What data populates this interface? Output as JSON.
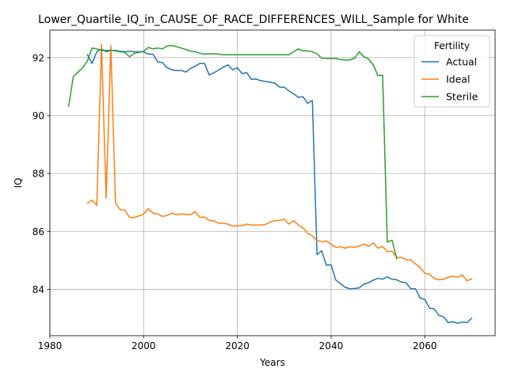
{
  "chart_data": {
    "type": "line",
    "title": "Lower_Quartile_IQ_in_CAUSE_OF_RACE_DIFFERENCES_WILL_Sample for White",
    "xlabel": "Years",
    "ylabel": "IQ",
    "xlim": [
      1980,
      2075
    ],
    "ylim": [
      82.4,
      92.95
    ],
    "xticks": [
      1980,
      2000,
      2020,
      2040,
      2060
    ],
    "yticks": [
      84,
      86,
      88,
      90,
      92
    ],
    "grid": true,
    "legend": {
      "title": "Fertility",
      "position": "top-right"
    },
    "series": [
      {
        "name": "Actual",
        "color": "#1f77b4",
        "points": [
          [
            1988,
            92.1
          ],
          [
            1989,
            91.8
          ],
          [
            1990,
            92.2
          ],
          [
            1991,
            92.3
          ],
          [
            1992,
            92.2
          ],
          [
            1993,
            92.25
          ],
          [
            1994,
            92.25
          ],
          [
            1995,
            92.22
          ],
          [
            1996,
            92.2
          ],
          [
            1997,
            92.22
          ],
          [
            1998,
            92.2
          ],
          [
            1999,
            92.2
          ],
          [
            2000,
            92.2
          ],
          [
            2001,
            92.12
          ],
          [
            2002,
            92.12
          ],
          [
            2003,
            91.85
          ],
          [
            2004,
            91.83
          ],
          [
            2005,
            91.65
          ],
          [
            2006,
            91.58
          ],
          [
            2007,
            91.55
          ],
          [
            2008,
            91.56
          ],
          [
            2009,
            91.5
          ],
          [
            2010,
            91.63
          ],
          [
            2011,
            91.7
          ],
          [
            2012,
            91.8
          ],
          [
            2013,
            91.8
          ],
          [
            2014,
            91.4
          ],
          [
            2015,
            91.48
          ],
          [
            2016,
            91.57
          ],
          [
            2017,
            91.67
          ],
          [
            2018,
            91.75
          ],
          [
            2019,
            91.58
          ],
          [
            2020,
            91.65
          ],
          [
            2021,
            91.45
          ],
          [
            2022,
            91.48
          ],
          [
            2023,
            91.25
          ],
          [
            2024,
            91.26
          ],
          [
            2025,
            91.2
          ],
          [
            2026,
            91.18
          ],
          [
            2027,
            91.15
          ],
          [
            2028,
            91.12
          ],
          [
            2029,
            90.98
          ],
          [
            2030,
            90.98
          ],
          [
            2031,
            90.85
          ],
          [
            2032,
            90.75
          ],
          [
            2033,
            90.63
          ],
          [
            2034,
            90.65
          ],
          [
            2035,
            90.42
          ],
          [
            2036,
            90.52
          ],
          [
            2037,
            85.2
          ],
          [
            2038,
            85.33
          ],
          [
            2039,
            84.83
          ],
          [
            2040,
            84.85
          ],
          [
            2041,
            84.32
          ],
          [
            2042,
            84.2
          ],
          [
            2043,
            84.07
          ],
          [
            2044,
            84.02
          ],
          [
            2045,
            84.03
          ],
          [
            2046,
            84.05
          ],
          [
            2047,
            84.18
          ],
          [
            2048,
            84.23
          ],
          [
            2049,
            84.32
          ],
          [
            2050,
            84.38
          ],
          [
            2051,
            84.35
          ],
          [
            2052,
            84.43
          ],
          [
            2053,
            84.35
          ],
          [
            2054,
            84.33
          ],
          [
            2055,
            84.25
          ],
          [
            2056,
            84.23
          ],
          [
            2057,
            84.02
          ],
          [
            2058,
            84.02
          ],
          [
            2059,
            83.7
          ],
          [
            2060,
            83.65
          ],
          [
            2061,
            83.35
          ],
          [
            2062,
            83.33
          ],
          [
            2063,
            83.1
          ],
          [
            2064,
            83.05
          ],
          [
            2065,
            82.85
          ],
          [
            2066,
            82.88
          ],
          [
            2067,
            82.83
          ],
          [
            2068,
            82.87
          ],
          [
            2069,
            82.85
          ],
          [
            2070,
            83.0
          ]
        ]
      },
      {
        "name": "Ideal",
        "color": "#ff7f0e",
        "points": [
          [
            1988,
            86.98
          ],
          [
            1989,
            87.08
          ],
          [
            1990,
            86.9
          ],
          [
            1991,
            92.45
          ],
          [
            1992,
            87.15
          ],
          [
            1993,
            92.42
          ],
          [
            1994,
            86.98
          ],
          [
            1995,
            86.75
          ],
          [
            1996,
            86.73
          ],
          [
            1997,
            86.48
          ],
          [
            1998,
            86.48
          ],
          [
            1999,
            86.53
          ],
          [
            2000,
            86.6
          ],
          [
            2001,
            86.78
          ],
          [
            2002,
            86.63
          ],
          [
            2003,
            86.6
          ],
          [
            2004,
            86.52
          ],
          [
            2005,
            86.55
          ],
          [
            2006,
            86.63
          ],
          [
            2007,
            86.58
          ],
          [
            2008,
            86.6
          ],
          [
            2009,
            86.59
          ],
          [
            2010,
            86.57
          ],
          [
            2011,
            86.68
          ],
          [
            2012,
            86.48
          ],
          [
            2013,
            86.5
          ],
          [
            2014,
            86.38
          ],
          [
            2015,
            86.36
          ],
          [
            2016,
            86.28
          ],
          [
            2017,
            86.28
          ],
          [
            2018,
            86.25
          ],
          [
            2019,
            86.18
          ],
          [
            2020,
            86.2
          ],
          [
            2021,
            86.2
          ],
          [
            2022,
            86.25
          ],
          [
            2023,
            86.22
          ],
          [
            2024,
            86.22
          ],
          [
            2025,
            86.22
          ],
          [
            2026,
            86.24
          ],
          [
            2027,
            86.32
          ],
          [
            2028,
            86.37
          ],
          [
            2029,
            86.38
          ],
          [
            2030,
            86.42
          ],
          [
            2031,
            86.25
          ],
          [
            2032,
            86.37
          ],
          [
            2033,
            86.22
          ],
          [
            2034,
            86.12
          ],
          [
            2035,
            85.93
          ],
          [
            2036,
            85.85
          ],
          [
            2037,
            85.68
          ],
          [
            2038,
            85.65
          ],
          [
            2039,
            85.67
          ],
          [
            2040,
            85.55
          ],
          [
            2041,
            85.45
          ],
          [
            2042,
            85.47
          ],
          [
            2043,
            85.42
          ],
          [
            2044,
            85.47
          ],
          [
            2045,
            85.45
          ],
          [
            2046,
            85.5
          ],
          [
            2047,
            85.56
          ],
          [
            2048,
            85.48
          ],
          [
            2049,
            85.6
          ],
          [
            2050,
            85.42
          ],
          [
            2051,
            85.48
          ],
          [
            2052,
            85.3
          ],
          [
            2053,
            85.32
          ],
          [
            2054,
            85.1
          ],
          [
            2055,
            85.1
          ],
          [
            2056,
            85.02
          ],
          [
            2057,
            85.02
          ],
          [
            2058,
            84.88
          ],
          [
            2059,
            84.75
          ],
          [
            2060,
            84.55
          ],
          [
            2061,
            84.52
          ],
          [
            2062,
            84.38
          ],
          [
            2063,
            84.33
          ],
          [
            2064,
            84.35
          ],
          [
            2065,
            84.42
          ],
          [
            2066,
            84.45
          ],
          [
            2067,
            84.42
          ],
          [
            2068,
            84.5
          ],
          [
            2069,
            84.3
          ],
          [
            2070,
            84.36
          ]
        ]
      },
      {
        "name": "Sterile",
        "color": "#2ca02c",
        "points": [
          [
            1984,
            90.32
          ],
          [
            1985,
            91.35
          ],
          [
            1986,
            91.5
          ],
          [
            1987,
            91.65
          ],
          [
            1988,
            91.88
          ],
          [
            1989,
            92.33
          ],
          [
            1990,
            92.3
          ],
          [
            1991,
            92.25
          ],
          [
            1992,
            92.25
          ],
          [
            1993,
            92.25
          ],
          [
            1994,
            92.23
          ],
          [
            1995,
            92.2
          ],
          [
            1996,
            92.18
          ],
          [
            1997,
            92.03
          ],
          [
            1998,
            92.15
          ],
          [
            1999,
            92.18
          ],
          [
            2000,
            92.22
          ],
          [
            2001,
            92.35
          ],
          [
            2002,
            92.3
          ],
          [
            2003,
            92.33
          ],
          [
            2004,
            92.3
          ],
          [
            2005,
            92.4
          ],
          [
            2006,
            92.42
          ],
          [
            2007,
            92.38
          ],
          [
            2008,
            92.33
          ],
          [
            2009,
            92.28
          ],
          [
            2010,
            92.22
          ],
          [
            2011,
            92.2
          ],
          [
            2012,
            92.15
          ],
          [
            2013,
            92.12
          ],
          [
            2014,
            92.13
          ],
          [
            2015,
            92.13
          ],
          [
            2016,
            92.12
          ],
          [
            2017,
            92.1
          ],
          [
            2018,
            92.1
          ],
          [
            2019,
            92.1
          ],
          [
            2020,
            92.1
          ],
          [
            2021,
            92.1
          ],
          [
            2022,
            92.1
          ],
          [
            2023,
            92.1
          ],
          [
            2024,
            92.1
          ],
          [
            2025,
            92.1
          ],
          [
            2026,
            92.1
          ],
          [
            2027,
            92.1
          ],
          [
            2028,
            92.1
          ],
          [
            2029,
            92.1
          ],
          [
            2030,
            92.1
          ],
          [
            2031,
            92.1
          ],
          [
            2032,
            92.2
          ],
          [
            2033,
            92.3
          ],
          [
            2034,
            92.23
          ],
          [
            2035,
            92.23
          ],
          [
            2036,
            92.2
          ],
          [
            2037,
            92.13
          ],
          [
            2038,
            91.98
          ],
          [
            2039,
            91.97
          ],
          [
            2040,
            91.97
          ],
          [
            2041,
            91.97
          ],
          [
            2042,
            91.93
          ],
          [
            2043,
            91.92
          ],
          [
            2044,
            91.92
          ],
          [
            2045,
            91.98
          ],
          [
            2046,
            92.2
          ],
          [
            2047,
            92.03
          ],
          [
            2048,
            91.95
          ],
          [
            2049,
            91.75
          ],
          [
            2050,
            91.37
          ],
          [
            2051,
            91.4
          ],
          [
            2052,
            85.63
          ],
          [
            2053,
            85.7
          ],
          [
            2054,
            85.05
          ]
        ]
      }
    ]
  }
}
